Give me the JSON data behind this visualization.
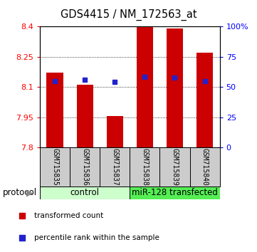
{
  "title": "GDS4415 / NM_172563_at",
  "samples": [
    "GSM715835",
    "GSM715836",
    "GSM715837",
    "GSM715838",
    "GSM715839",
    "GSM715840"
  ],
  "red_values": [
    8.17,
    8.11,
    7.955,
    8.4,
    8.39,
    8.27
  ],
  "blue_values": [
    8.13,
    8.135,
    8.125,
    8.15,
    8.145,
    8.13
  ],
  "ylim_left": [
    7.8,
    8.4
  ],
  "ylim_right": [
    0,
    100
  ],
  "yticks_left": [
    7.8,
    7.95,
    8.1,
    8.25,
    8.4
  ],
  "yticks_right": [
    0,
    25,
    50,
    75,
    100
  ],
  "ytick_labels_right": [
    "0",
    "25",
    "50",
    "75",
    "100%"
  ],
  "control_label": "control",
  "treated_label": "miR-128 transfected",
  "protocol_label": "protocol",
  "legend_red": "transformed count",
  "legend_blue": "percentile rank within the sample",
  "bar_color": "#CC0000",
  "blue_color": "#2222CC",
  "control_bg": "#CCFFCC",
  "treated_bg": "#55EE55",
  "sample_bg": "#CCCCCC",
  "bar_width": 0.55,
  "bar_bottom": 7.8
}
